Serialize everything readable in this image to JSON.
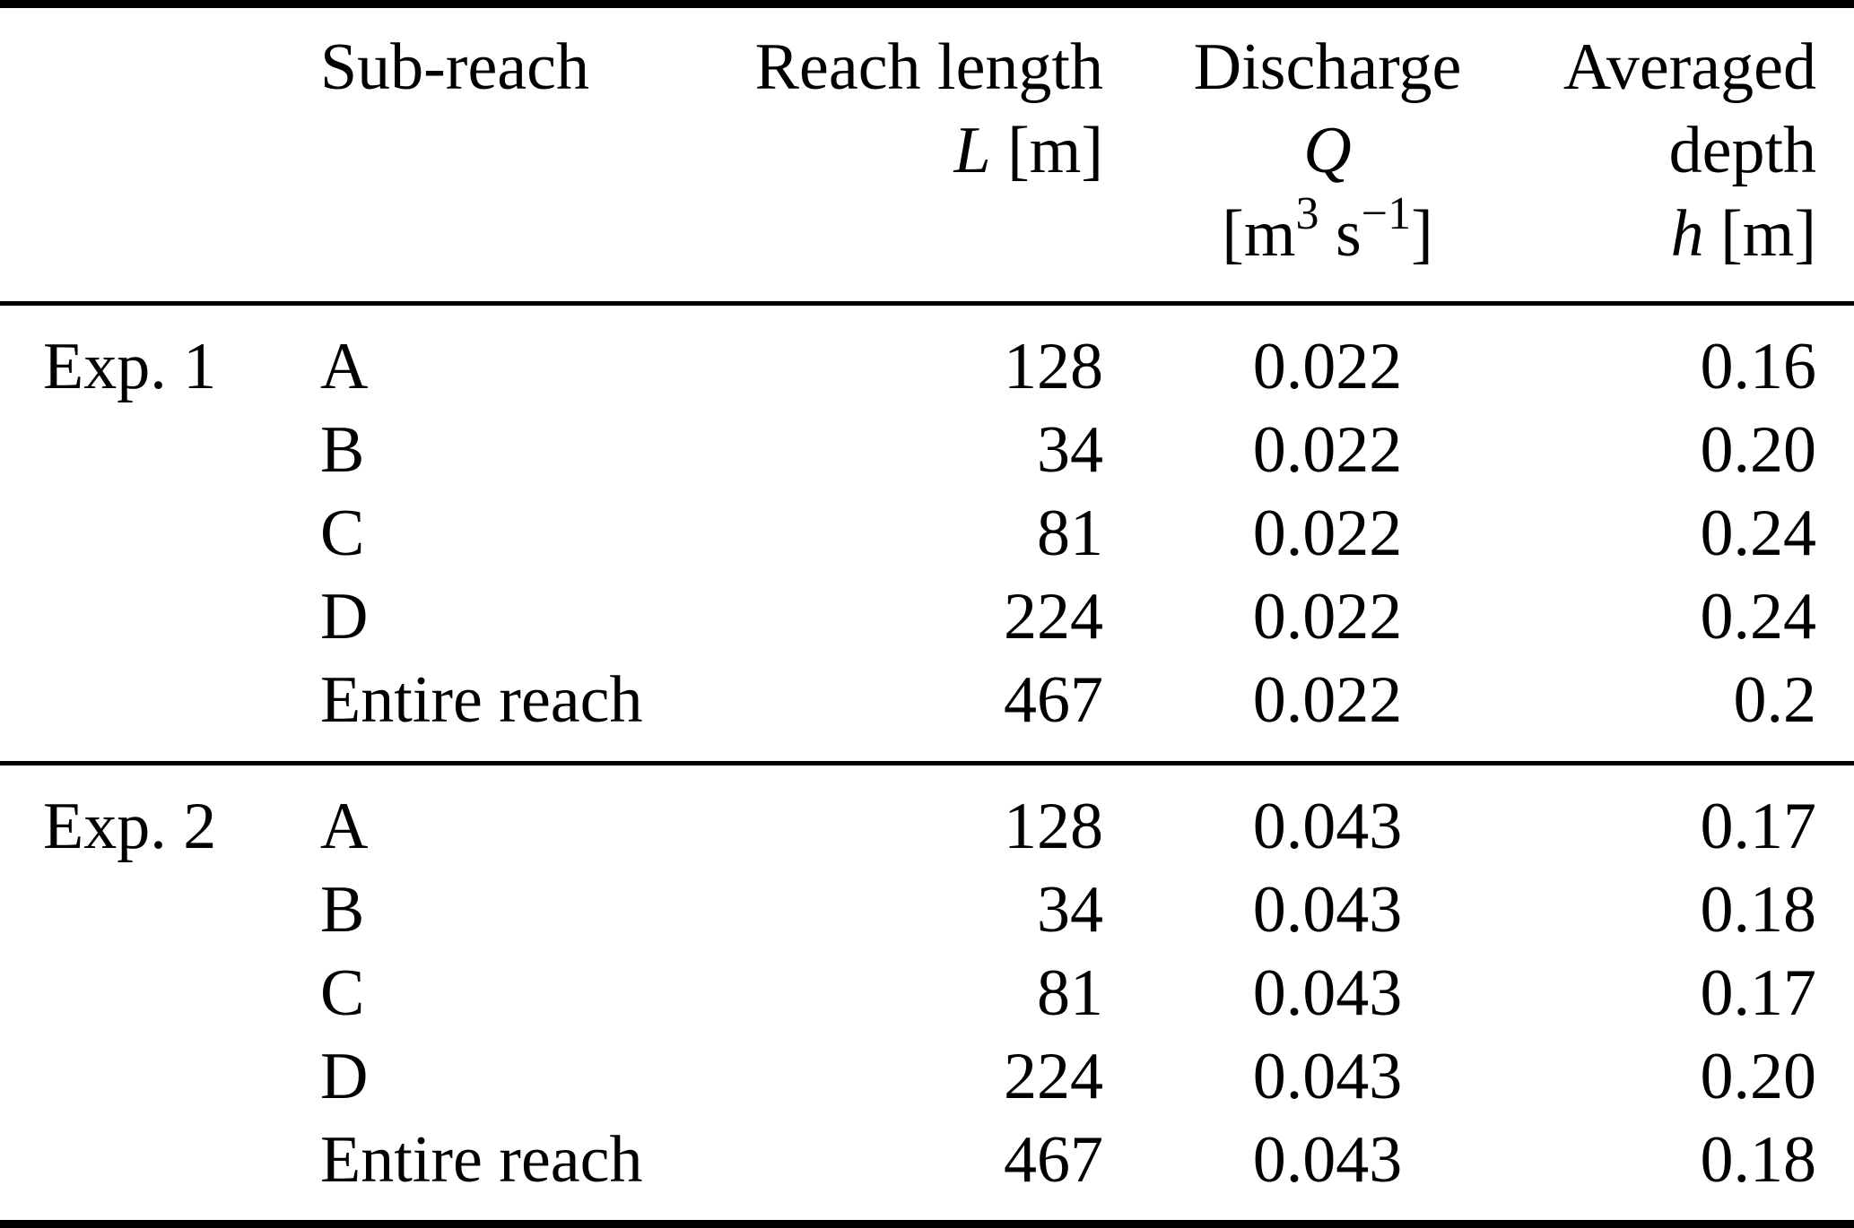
{
  "table": {
    "header": {
      "sub_reach": "Sub-reach",
      "reach_length": {
        "title": "Reach length",
        "symbol": "L",
        "unit": "[m]"
      },
      "discharge": {
        "title": "Discharge",
        "symbol": "Q",
        "unit_open": "[m",
        "unit_sup1": "3",
        "unit_mid": " s",
        "unit_sup2": "−1",
        "unit_close": "]"
      },
      "averaged_depth": {
        "title": "Averaged",
        "title_line2": "depth",
        "symbol": "h",
        "unit": "[m]"
      }
    },
    "sections": [
      {
        "label": "Exp. 1",
        "rows": [
          {
            "sub_reach": "A",
            "length": "128",
            "discharge": "0.022",
            "depth": "0.16"
          },
          {
            "sub_reach": "B",
            "length": "34",
            "discharge": "0.022",
            "depth": "0.20"
          },
          {
            "sub_reach": "C",
            "length": "81",
            "discharge": "0.022",
            "depth": "0.24"
          },
          {
            "sub_reach": "D",
            "length": "224",
            "discharge": "0.022",
            "depth": "0.24"
          },
          {
            "sub_reach": "Entire reach",
            "length": "467",
            "discharge": "0.022",
            "depth": "0.2"
          }
        ]
      },
      {
        "label": "Exp. 2",
        "rows": [
          {
            "sub_reach": "A",
            "length": "128",
            "discharge": "0.043",
            "depth": "0.17"
          },
          {
            "sub_reach": "B",
            "length": "34",
            "discharge": "0.043",
            "depth": "0.18"
          },
          {
            "sub_reach": "C",
            "length": "81",
            "discharge": "0.043",
            "depth": "0.17"
          },
          {
            "sub_reach": "D",
            "length": "224",
            "discharge": "0.043",
            "depth": "0.20"
          },
          {
            "sub_reach": "Entire reach",
            "length": "467",
            "discharge": "0.043",
            "depth": "0.18"
          }
        ]
      }
    ]
  }
}
